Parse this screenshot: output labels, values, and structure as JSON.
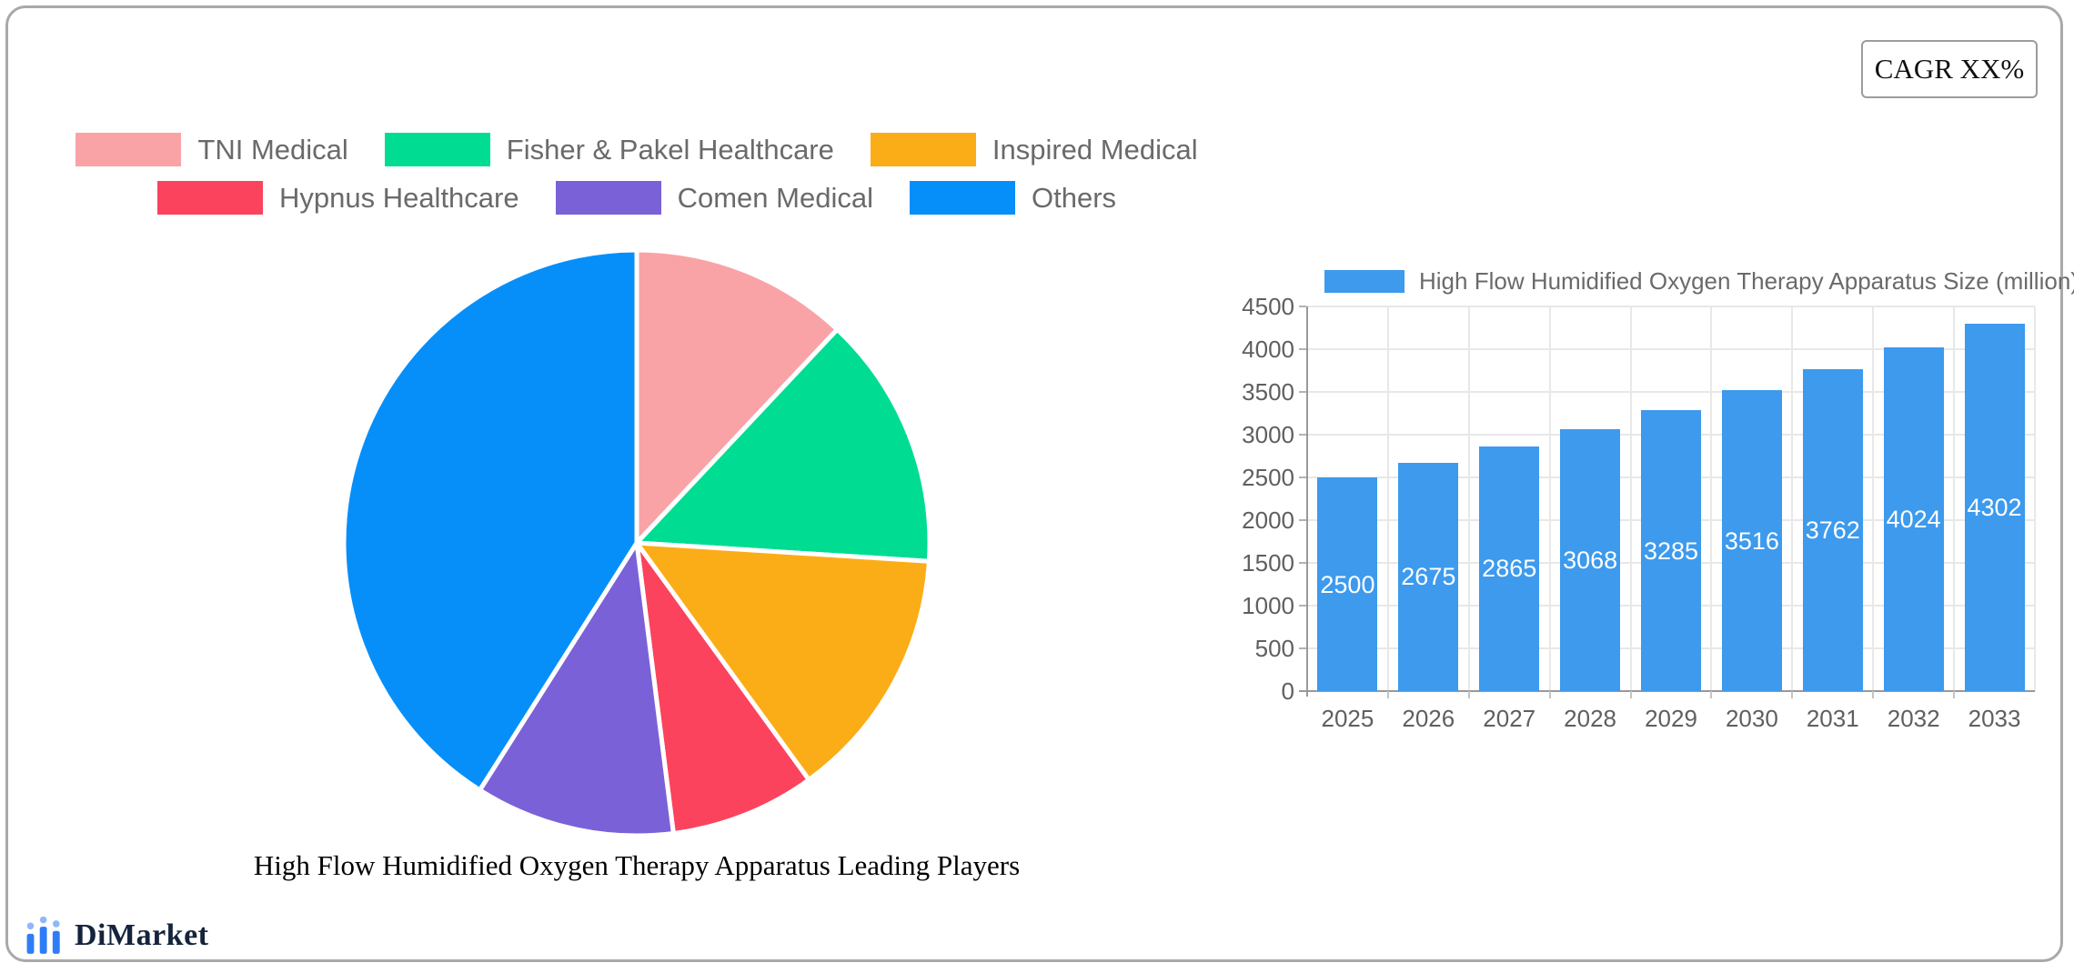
{
  "cagr_box": {
    "label": "CAGR XX%"
  },
  "logo": {
    "text": "DiMarket",
    "icon": "bar-chart-icon",
    "accent_color": "#2f7df6",
    "text_color": "#15243c"
  },
  "chart_data": [
    {
      "type": "pie",
      "title": "High Flow Humidified Oxygen Therapy Apparatus Leading Players",
      "labels": [
        "TNI Medical",
        "Fisher & Pakel Healthcare",
        "Inspired Medical",
        "Hypnus Healthcare",
        "Comen Medical",
        "Others"
      ],
      "values": [
        12,
        14,
        14,
        8,
        11,
        41
      ],
      "value_unit": "percent share (estimated from slice angles, no numeric labels shown)",
      "colors": [
        "#f9a3a7",
        "#00dd92",
        "#fbad17",
        "#fc435e",
        "#7a61d8",
        "#068ff9"
      ],
      "start_angle_deg": 0,
      "direction": "clockwise",
      "slice_border_color": "#ffffff",
      "legend_position": "top"
    },
    {
      "type": "bar",
      "legend_label": "High Flow Humidified Oxygen Therapy Apparatus Size (million)",
      "categories": [
        "2025",
        "2026",
        "2027",
        "2028",
        "2029",
        "2030",
        "2031",
        "2032",
        "2033"
      ],
      "values": [
        2500,
        2675,
        2865,
        3068,
        3285,
        3516,
        3762,
        4024,
        4302
      ],
      "bar_color": "#3d9aed",
      "value_label_color": "#ffffff",
      "ylim": [
        0,
        4500
      ],
      "ytick_step": 500,
      "grid": true,
      "legend_position": "top"
    }
  ]
}
